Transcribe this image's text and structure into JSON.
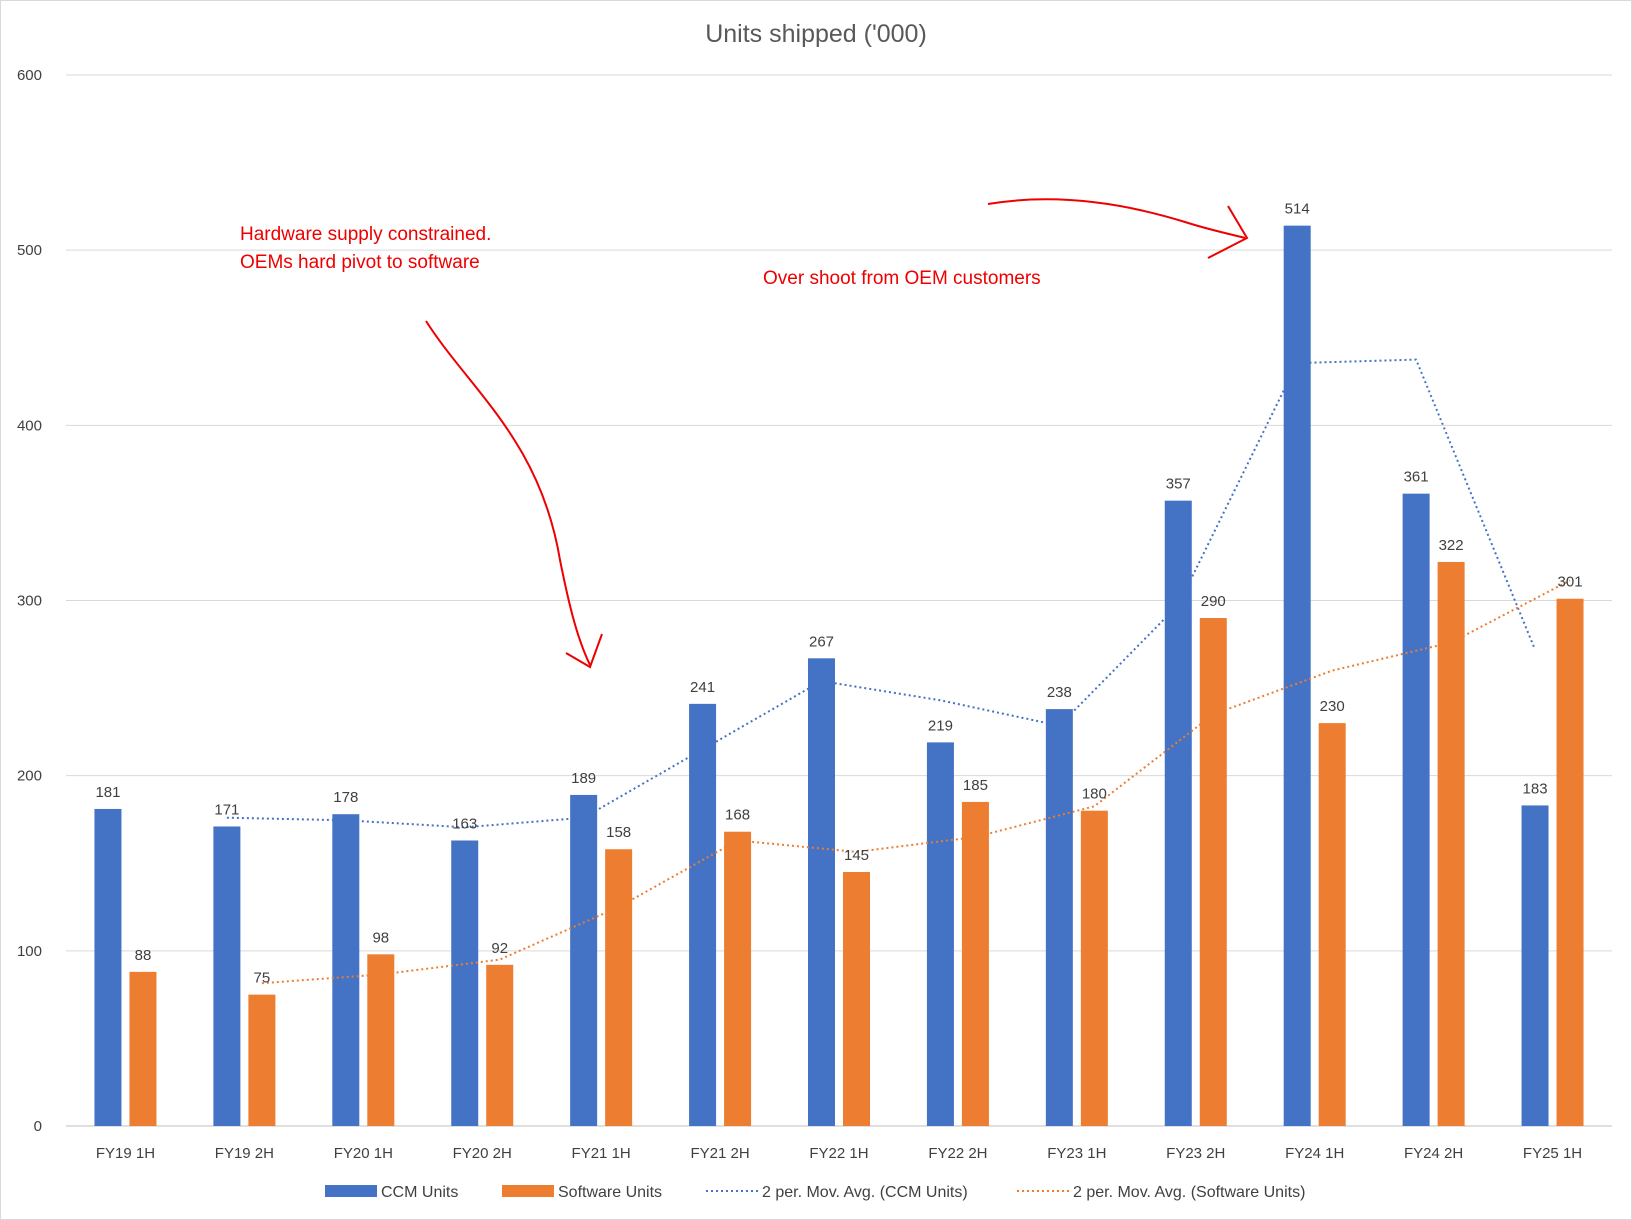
{
  "chart_data": {
    "type": "bar",
    "title": "Units shipped ('000)",
    "xlabel": "",
    "ylabel": "",
    "categories": [
      "FY19 1H",
      "FY19 2H",
      "FY20 1H",
      "FY20 2H",
      "FY21 1H",
      "FY21 2H",
      "FY22 1H",
      "FY22 2H",
      "FY23 1H",
      "FY23 2H",
      "FY24 1H",
      "FY24 2H",
      "FY25 1H"
    ],
    "ylim": [
      0,
      600
    ],
    "yticks": [
      0,
      100,
      200,
      300,
      400,
      500,
      600
    ],
    "grid": true,
    "legend_position": "bottom",
    "series": [
      {
        "name": "CCM Units",
        "kind": "bar",
        "color": "#4472c4",
        "values": [
          181,
          171,
          178,
          163,
          189,
          241,
          267,
          219,
          238,
          357,
          514,
          361,
          183
        ]
      },
      {
        "name": "Software Units",
        "kind": "bar",
        "color": "#ed7d31",
        "values": [
          88,
          75,
          98,
          92,
          158,
          168,
          145,
          185,
          180,
          290,
          230,
          322,
          301
        ]
      }
    ],
    "trendlines": [
      {
        "name": "2 per. Mov. Avg. (CCM Units)",
        "type": "moving_average",
        "period": 2,
        "of": "CCM Units",
        "color": "#4472c4",
        "style": "dotted"
      },
      {
        "name": "2 per. Mov. Avg. (Software Units)",
        "type": "moving_average",
        "period": 2,
        "of": "Software Units",
        "color": "#ed7d31",
        "style": "dotted"
      }
    ],
    "annotations": [
      {
        "lines": [
          "Hardware supply constrained.",
          "OEMs hard pivot to software"
        ],
        "color": "#ee0000",
        "points_to": "FY21 1H"
      },
      {
        "lines": [
          "Over shoot from OEM customers"
        ],
        "color": "#ee0000",
        "points_to": "FY24 1H"
      }
    ]
  }
}
